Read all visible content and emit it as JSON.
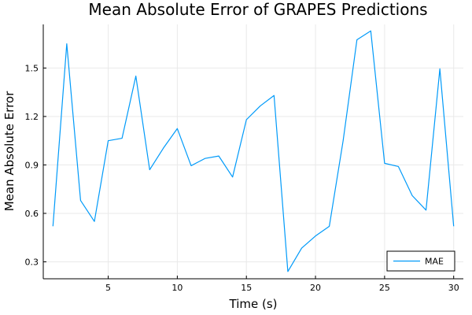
{
  "chart_data": {
    "type": "line",
    "title": "Mean Absolute Error of GRAPES Predictions",
    "xlabel": "Time (s)",
    "ylabel": "Mean Absolute Error",
    "xlim": [
      0.3,
      30.7
    ],
    "ylim": [
      0.195,
      1.77
    ],
    "xticks": [
      5,
      10,
      15,
      20,
      25,
      30
    ],
    "yticks": [
      0.3,
      0.6,
      0.9,
      1.2,
      1.5
    ],
    "ytick_labels": [
      "0.3",
      "0.6",
      "0.9",
      "1.2",
      "1.5"
    ],
    "grid": true,
    "legend_position": "bottom-right",
    "series": [
      {
        "name": "MAE",
        "color": "#009af9",
        "x": [
          1,
          2,
          3,
          4,
          5,
          6,
          7,
          8,
          9,
          10,
          11,
          12,
          13,
          14,
          15,
          16,
          17,
          18,
          19,
          20,
          21,
          22,
          23,
          24,
          25,
          26,
          27,
          28,
          29,
          30
        ],
        "y": [
          0.52,
          1.65,
          0.68,
          0.55,
          1.05,
          1.065,
          1.45,
          0.87,
          1.005,
          1.125,
          0.895,
          0.94,
          0.955,
          0.825,
          1.18,
          1.265,
          1.33,
          0.24,
          0.385,
          0.46,
          0.52,
          1.05,
          1.675,
          1.73,
          0.91,
          0.89,
          0.71,
          0.62,
          1.495,
          0.52
        ]
      }
    ]
  }
}
